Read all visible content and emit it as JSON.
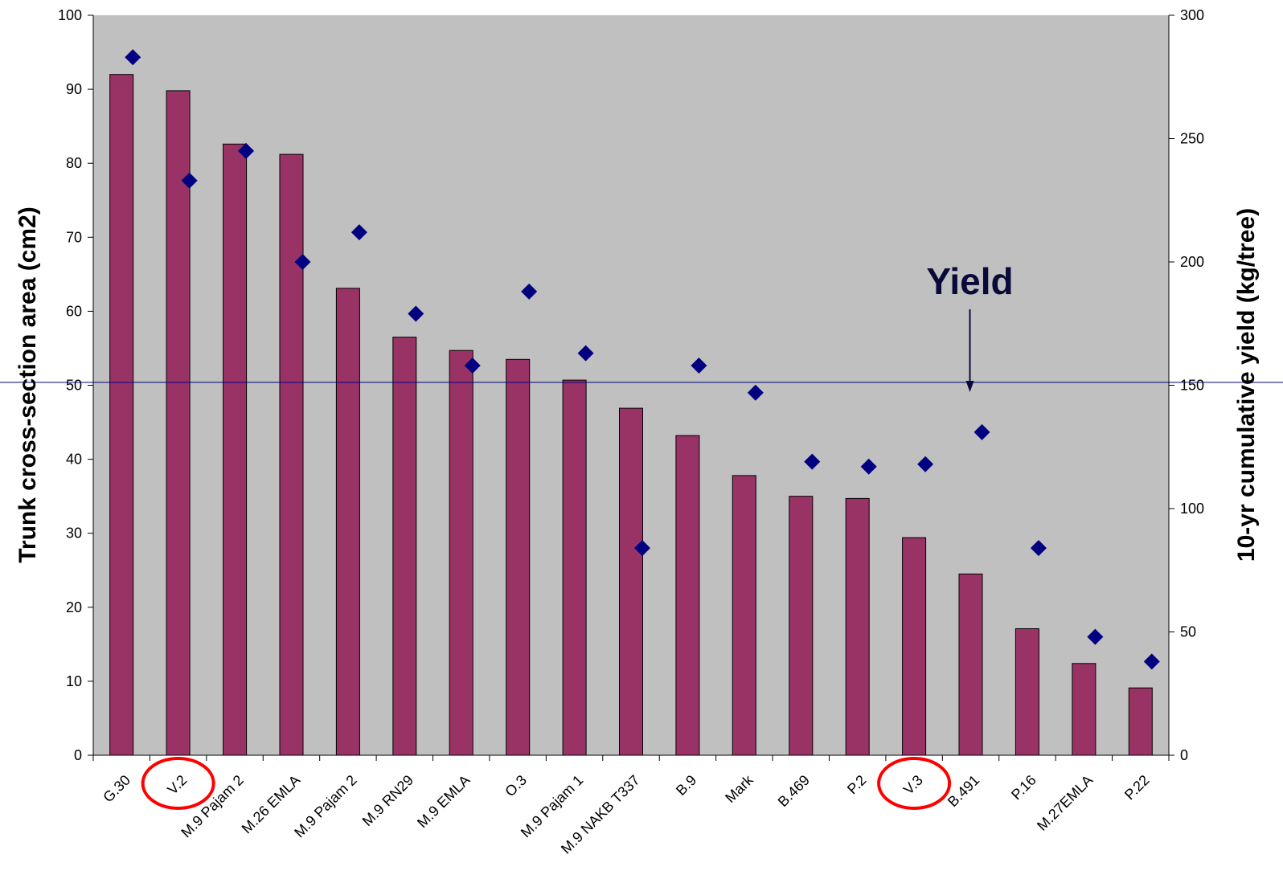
{
  "chart_data": {
    "type": "bar",
    "categories": [
      "G.30",
      "V.2",
      "M.9 Pajam 2",
      "M.26 EMLA",
      "M.9 Pajam 2",
      "M.9 RN29",
      "M.9 EMLA",
      "O.3",
      "M.9 Pajam 1",
      "M.9 NAKB T337",
      "B.9",
      "Mark",
      "B.469",
      "P.2",
      "V.3",
      "B.491",
      "P.16",
      "M.27EMLA",
      "P.22"
    ],
    "series": [
      {
        "type": "bar",
        "axis": "left",
        "values": [
          92,
          89.8,
          82.6,
          81.2,
          63.1,
          56.5,
          54.7,
          53.5,
          50.7,
          46.9,
          43.2,
          37.8,
          35,
          34.7,
          29.4,
          24.5,
          17.1,
          12.4,
          9.1
        ]
      },
      {
        "type": "scatter",
        "axis": "right",
        "values": [
          283,
          233,
          245,
          200,
          212,
          179,
          158,
          188,
          163,
          84,
          158,
          147,
          119,
          117,
          118,
          131,
          84,
          48,
          38
        ]
      }
    ],
    "ylabel": "Trunk cross-section area (cm2)",
    "ylabel_right": "10-yr cumulative yield (kg/tree)",
    "ylim": [
      0,
      100
    ],
    "ylim_right": [
      0,
      300
    ],
    "yticks": [
      "0",
      "10",
      "20",
      "30",
      "40",
      "50",
      "60",
      "70",
      "80",
      "90",
      "100"
    ],
    "yticks_right": [
      "0",
      "50",
      "100",
      "150",
      "200",
      "250",
      "300"
    ],
    "reference_line_y": 50.4,
    "annotation": {
      "text": "Yield",
      "target_index": 15
    },
    "highlighted": [
      "V.2",
      "V.3"
    ],
    "grid": false,
    "colors": {
      "plot_background": "#c0c0c0",
      "bar": "#993366",
      "marker": "#000080",
      "reference_line": "#000080",
      "highlight": "#ff0000",
      "annotation": "#0a0a3a"
    }
  }
}
